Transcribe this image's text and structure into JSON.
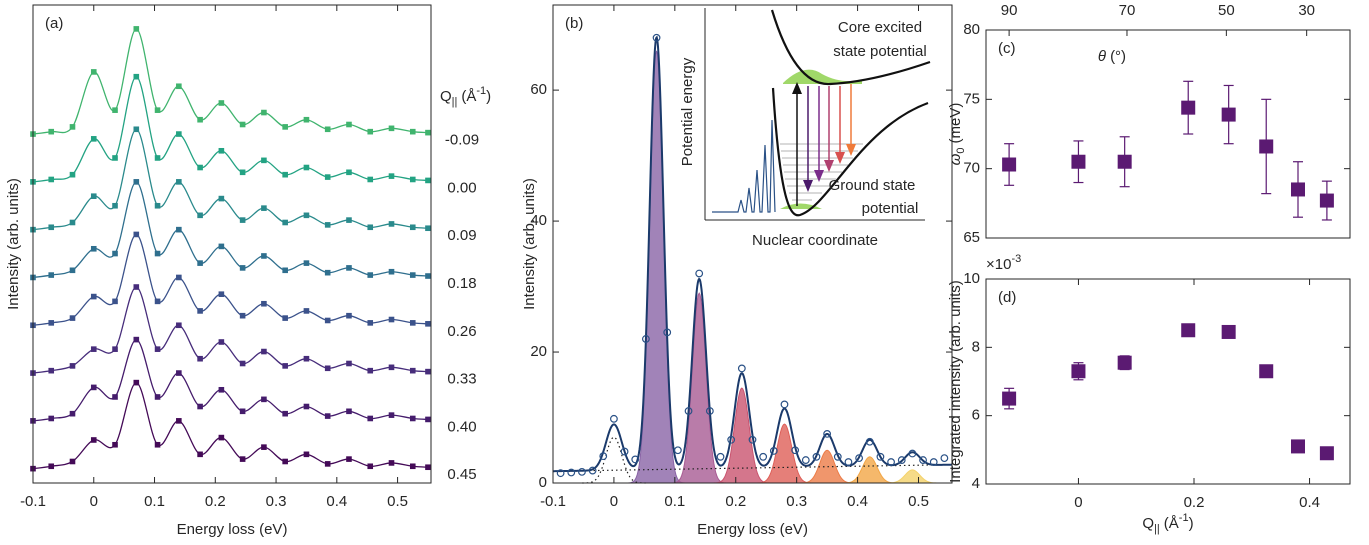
{
  "chart_data": [
    {
      "type": "line",
      "panel_label": "(a)",
      "x_label": "Energy loss (eV)",
      "y_label": "Intensity (arb. units)",
      "series_title": [
        "Q",
        "||",
        "(Å",
        "-1",
        ")"
      ],
      "x": [
        -0.1,
        -0.07,
        -0.035,
        0,
        0.035,
        0.07,
        0.105,
        0.14,
        0.175,
        0.21,
        0.245,
        0.28,
        0.315,
        0.35,
        0.385,
        0.42,
        0.455,
        0.49,
        0.525,
        0.55
      ],
      "series": [
        {
          "name": "-0.09",
          "color": "#40b46e",
          "values": [
            7.3,
            7.35,
            7.45,
            8.6,
            7.8,
            9.5,
            7.8,
            8.3,
            7.6,
            7.95,
            7.5,
            7.75,
            7.45,
            7.6,
            7.4,
            7.5,
            7.35,
            7.42,
            7.35,
            7.33
          ]
        },
        {
          "name": "0.00",
          "color": "#23a383",
          "values": [
            6.3,
            6.35,
            6.45,
            7.2,
            6.8,
            8.5,
            6.8,
            7.3,
            6.6,
            6.95,
            6.5,
            6.75,
            6.45,
            6.6,
            6.4,
            6.5,
            6.35,
            6.42,
            6.35,
            6.33
          ]
        },
        {
          "name": "0.09",
          "color": "#2a8a8c",
          "values": [
            5.3,
            5.35,
            5.45,
            6.0,
            5.8,
            7.4,
            5.8,
            6.3,
            5.6,
            5.95,
            5.5,
            5.75,
            5.45,
            5.6,
            5.4,
            5.5,
            5.35,
            5.42,
            5.35,
            5.33
          ]
        },
        {
          "name": "0.18",
          "color": "#2f6f8e",
          "values": [
            4.3,
            4.35,
            4.45,
            4.9,
            4.8,
            6.3,
            4.8,
            5.3,
            4.6,
            4.95,
            4.5,
            4.75,
            4.45,
            4.6,
            4.4,
            4.5,
            4.35,
            4.42,
            4.35,
            4.33
          ]
        },
        {
          "name": "0.26",
          "color": "#3b528b",
          "values": [
            3.3,
            3.35,
            3.45,
            3.9,
            3.8,
            5.2,
            3.8,
            4.3,
            3.6,
            3.95,
            3.5,
            3.75,
            3.45,
            3.6,
            3.4,
            3.5,
            3.35,
            3.42,
            3.35,
            3.33
          ]
        },
        {
          "name": "0.33",
          "color": "#472d7b",
          "values": [
            2.3,
            2.35,
            2.45,
            2.8,
            2.8,
            4.1,
            2.8,
            3.3,
            2.6,
            2.95,
            2.5,
            2.75,
            2.45,
            2.6,
            2.4,
            2.5,
            2.35,
            2.42,
            2.35,
            2.33
          ]
        },
        {
          "name": "0.40",
          "color": "#451c6c",
          "values": [
            1.3,
            1.35,
            1.45,
            2.0,
            1.8,
            3.0,
            1.8,
            2.3,
            1.6,
            1.95,
            1.5,
            1.75,
            1.45,
            1.6,
            1.4,
            1.5,
            1.35,
            1.42,
            1.35,
            1.33
          ]
        },
        {
          "name": "0.45",
          "color": "#440a57",
          "values": [
            0.3,
            0.35,
            0.45,
            0.9,
            0.8,
            2.1,
            0.8,
            1.3,
            0.6,
            0.95,
            0.5,
            0.75,
            0.45,
            0.6,
            0.4,
            0.5,
            0.35,
            0.42,
            0.35,
            0.33
          ]
        }
      ],
      "xlim": [
        -0.1,
        0.555
      ],
      "xticks": [
        -0.1,
        0,
        0.1,
        0.2,
        0.3,
        0.4,
        0.5
      ],
      "ylim": [
        0,
        10
      ]
    },
    {
      "type": "fit",
      "panel_label": "(b)",
      "x_label": "Energy loss (eV)",
      "y_label": "Intensity (arb. units)",
      "x": [
        -0.0875,
        -0.07,
        -0.0525,
        -0.035,
        -0.0175,
        0,
        0.0175,
        0.035,
        0.0525,
        0.07,
        0.0875,
        0.105,
        0.1225,
        0.14,
        0.1575,
        0.175,
        0.1925,
        0.21,
        0.2275,
        0.245,
        0.2625,
        0.28,
        0.2975,
        0.315,
        0.3325,
        0.35,
        0.3675,
        0.385,
        0.4025,
        0.42,
        0.4375,
        0.455,
        0.4725,
        0.49,
        0.5075,
        0.525,
        0.5425
      ],
      "values": [
        1.5,
        1.6,
        1.7,
        1.9,
        4.1,
        9.8,
        4.8,
        3.6,
        22,
        68,
        23,
        5,
        11,
        32,
        11,
        4,
        6.6,
        17.5,
        6.6,
        4,
        4.9,
        12,
        5,
        3.5,
        4,
        7.5,
        4,
        3.2,
        3.8,
        6.3,
        4,
        3.2,
        3.5,
        4.5,
        3.5,
        3.2,
        3.8
      ],
      "color": "#2a5186",
      "fit_color": "#1b3a6b",
      "background": {
        "x": [
          -0.1,
          0.555
        ],
        "values": [
          1.8,
          2.8
        ]
      },
      "elastic": {
        "center": 0,
        "height": 7,
        "width": 0.013
      },
      "peaks": {
        "centers": [
          0.07,
          0.14,
          0.21,
          0.28,
          0.35,
          0.42,
          0.49
        ],
        "heights": [
          66,
          29,
          14.5,
          9,
          5,
          4,
          2
        ],
        "widths": [
          0.0113,
          0.0113,
          0.012,
          0.012,
          0.012,
          0.012,
          0.012
        ],
        "colors": [
          "#8a64a6",
          "#a85b93",
          "#c9546f",
          "#de5f58",
          "#ec7c47",
          "#f2a646",
          "#f4d26a"
        ]
      },
      "xlim": [
        -0.1,
        0.555
      ],
      "xticks": [
        -0.1,
        0,
        0.1,
        0.2,
        0.3,
        0.4,
        0.5
      ],
      "ylim": [
        0,
        73
      ],
      "yticks": [
        0,
        20,
        40,
        60
      ],
      "inset": {
        "y_label": "Potential energy",
        "x_label": "Nuclear coordinate",
        "upper_label": [
          "Core excited",
          "state potential"
        ],
        "lower_label": [
          "Ground state",
          "potential"
        ]
      }
    },
    {
      "type": "scatter",
      "panel_label": "(c)",
      "y_label": [
        "ω",
        "0",
        "(meV)"
      ],
      "x2_label": [
        "θ",
        "(°)"
      ],
      "x": [
        -0.12,
        0,
        0.08,
        0.19,
        0.26,
        0.325,
        0.38,
        0.43
      ],
      "values": [
        70.3,
        70.5,
        70.5,
        74.4,
        73.9,
        71.6,
        68.5,
        67.7
      ],
      "errors": [
        1.5,
        1.5,
        1.8,
        1.9,
        2.1,
        3.4,
        2,
        1.4
      ],
      "color": "#5b1a72",
      "xlim": [
        -0.16,
        0.47
      ],
      "ylim": [
        65,
        80
      ],
      "yticks": [
        65,
        70,
        75,
        80
      ],
      "x2ticks": [
        {
          "value": -0.12,
          "label": "90"
        },
        {
          "value": 0.084,
          "label": "70"
        },
        {
          "value": 0.256,
          "label": "50"
        },
        {
          "value": 0.395,
          "label": "30"
        }
      ]
    },
    {
      "type": "scatter",
      "panel_label": "(d)",
      "y_label": "Integrated intensity (arb. units)",
      "y_multiplier": [
        "×10",
        "-3"
      ],
      "x_label": [
        "Q",
        "||",
        "(Å",
        "-1",
        ")"
      ],
      "x": [
        -0.12,
        0,
        0.08,
        0.19,
        0.26,
        0.325,
        0.38,
        0.43
      ],
      "values": [
        6.5,
        7.3,
        7.55,
        8.5,
        8.45,
        7.3,
        5.1,
        4.9
      ],
      "errors": [
        0.3,
        0.25,
        0.2,
        0.12,
        0.12,
        0.1,
        0.1,
        0.12
      ],
      "color": "#5b1a72",
      "xlim": [
        -0.16,
        0.47
      ],
      "xticks": [
        0,
        0.2,
        0.4
      ],
      "ylim": [
        4,
        10
      ],
      "yticks": [
        4,
        6,
        8,
        10
      ]
    }
  ]
}
